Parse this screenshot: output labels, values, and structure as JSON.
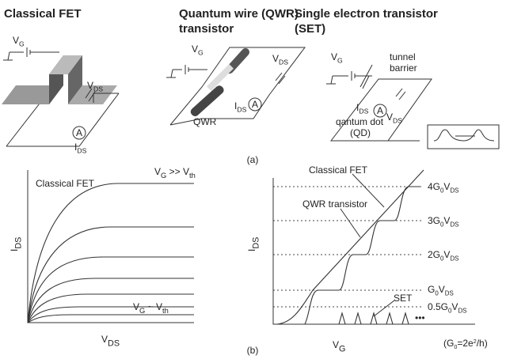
{
  "panel_a": {
    "classical_fet": {
      "title": "Classical FET",
      "vg": [
        "V",
        "G"
      ],
      "vds": [
        "V",
        "DS"
      ],
      "ids": [
        "I",
        "DS"
      ],
      "ammeter": "A"
    },
    "qwr": {
      "title_lines": [
        "Quantum wire (QWR)",
        "transistor"
      ],
      "vg": [
        "V",
        "G"
      ],
      "vds": [
        "V",
        "DS"
      ],
      "ids": [
        "I",
        "DS"
      ],
      "ammeter": "A",
      "wire": "QWR"
    },
    "set": {
      "title_lines": [
        "Single electron transistor",
        "(SET)"
      ],
      "vg": [
        "V",
        "G"
      ],
      "vds": [
        "V",
        "DS"
      ],
      "ids": [
        "I",
        "DS"
      ],
      "ammeter": "A",
      "barrier_lines": [
        "tunnel",
        "barrier"
      ],
      "dot_lines": [
        "qantum dot",
        "(QD)"
      ]
    },
    "caption": "(a)"
  },
  "panel_b": {
    "left": {
      "label": "Classical FET",
      "vg_high": [
        "V",
        "G",
        " >> V",
        "th"
      ],
      "vg_low": [
        "V",
        "G",
        " ~ V",
        "th"
      ],
      "ylabel": [
        "I",
        "DS"
      ],
      "xlabel": [
        "V",
        "DS"
      ]
    },
    "right": {
      "labels": [
        "Classical FET",
        "QWR transistor",
        "SET"
      ],
      "levels": [
        [
          "4G",
          "0",
          "V",
          "DS"
        ],
        [
          "3G",
          "0",
          "V",
          "DS"
        ],
        [
          "2G",
          "0",
          "V",
          "DS"
        ],
        [
          "G",
          "0",
          "V",
          "DS"
        ],
        [
          "0.5G",
          "0",
          "V",
          "DS"
        ]
      ],
      "ylabel": [
        "I",
        "DS"
      ],
      "xlabel": [
        "V",
        "G"
      ],
      "dots": "•••",
      "note": [
        "(G",
        "0",
        "=2e",
        "2",
        "/h)"
      ]
    },
    "caption": "(b)"
  }
}
